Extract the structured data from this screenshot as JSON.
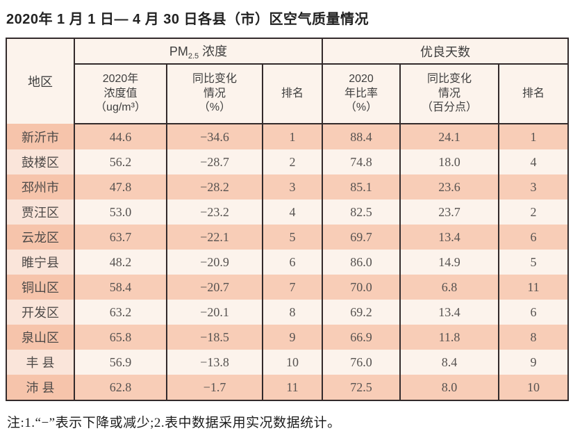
{
  "page": {
    "title": "2020年 1 月 1 日— 4 月 30 日各县（市）区空气质量情况",
    "note": "注:1.“−”表示下降或减少;2.表中数据采用实况数据统计。"
  },
  "colors": {
    "border": "#322a2b",
    "row_salmon": "#f8cdb7",
    "row_salmon_region": "#f6c4ab",
    "row_cream": "#fcf3ec",
    "row_cream_region": "#fae5da",
    "header_bg": "#fcf3ec"
  },
  "table": {
    "corner_header": "地区",
    "group_pm": {
      "prefix": "PM",
      "sub": "2.5",
      "suffix": " 浓度"
    },
    "group_good_days": "优良天数",
    "subheaders": {
      "pm_value": "2020年\n浓度值\n（ug/m³）",
      "pm_change": "同比变化\n情况\n（%）",
      "pm_rank": "排名",
      "gd_ratio": "2020\n年比率\n（%）",
      "gd_change": "同比变化\n情况\n（百分点）",
      "gd_rank": "排名"
    },
    "rows": [
      {
        "region": "新沂市",
        "cells": [
          "44.6",
          "−34.6",
          "1",
          "88.4",
          "24.1",
          "1"
        ]
      },
      {
        "region": "鼓楼区",
        "cells": [
          "56.2",
          "−28.7",
          "2",
          "74.8",
          "18.0",
          "4"
        ]
      },
      {
        "region": "邳州市",
        "cells": [
          "47.8",
          "−28.2",
          "3",
          "85.1",
          "23.6",
          "3"
        ]
      },
      {
        "region": "贾汪区",
        "cells": [
          "53.0",
          "−23.2",
          "4",
          "82.5",
          "23.7",
          "2"
        ]
      },
      {
        "region": "云龙区",
        "cells": [
          "63.7",
          "−22.1",
          "5",
          "69.7",
          "13.4",
          "6"
        ]
      },
      {
        "region": "睢宁县",
        "cells": [
          "48.2",
          "−20.9",
          "6",
          "86.0",
          "14.9",
          "5"
        ]
      },
      {
        "region": "铜山区",
        "cells": [
          "58.4",
          "−20.7",
          "7",
          "70.0",
          "6.8",
          "11"
        ]
      },
      {
        "region": "开发区",
        "cells": [
          "63.2",
          "−20.1",
          "8",
          "69.2",
          "13.4",
          "6"
        ]
      },
      {
        "region": "泉山区",
        "cells": [
          "65.8",
          "−18.5",
          "9",
          "66.9",
          "11.8",
          "8"
        ]
      },
      {
        "region": "丰 县",
        "cells": [
          "56.9",
          "−13.8",
          "10",
          "76.0",
          "8.4",
          "9"
        ]
      },
      {
        "region": "沛 县",
        "cells": [
          "62.8",
          "−1.7",
          "11",
          "72.5",
          "8.0",
          "10"
        ]
      }
    ]
  }
}
